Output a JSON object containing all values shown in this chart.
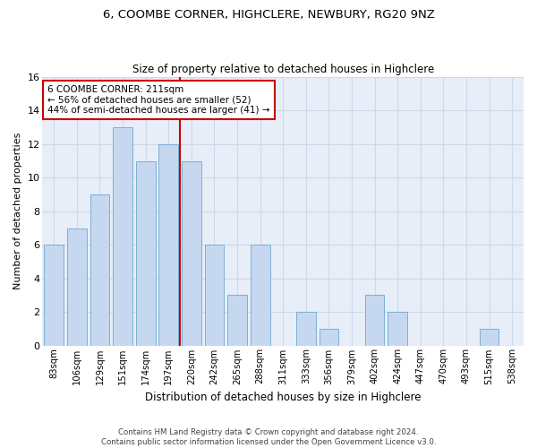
{
  "title": "6, COOMBE CORNER, HIGHCLERE, NEWBURY, RG20 9NZ",
  "subtitle": "Size of property relative to detached houses in Highclere",
  "xlabel": "Distribution of detached houses by size in Highclere",
  "ylabel": "Number of detached properties",
  "bar_labels": [
    "83sqm",
    "106sqm",
    "129sqm",
    "151sqm",
    "174sqm",
    "197sqm",
    "220sqm",
    "242sqm",
    "265sqm",
    "288sqm",
    "311sqm",
    "333sqm",
    "356sqm",
    "379sqm",
    "402sqm",
    "424sqm",
    "447sqm",
    "470sqm",
    "493sqm",
    "515sqm",
    "538sqm"
  ],
  "bar_values": [
    6,
    7,
    9,
    13,
    11,
    12,
    11,
    6,
    3,
    6,
    0,
    2,
    1,
    0,
    3,
    2,
    0,
    0,
    0,
    1,
    0
  ],
  "bar_color": "#c5d8f0",
  "bar_edge_color": "#7bafd4",
  "property_line_x": 5.5,
  "property_line_label": "6 COOMBE CORNER: 211sqm",
  "annotation_line1": "← 56% of detached houses are smaller (52)",
  "annotation_line2": "44% of semi-detached houses are larger (41) →",
  "annotation_box_color": "#ffffff",
  "annotation_box_edge_color": "#cc0000",
  "vline_color": "#cc0000",
  "ylim": [
    0,
    16
  ],
  "yticks": [
    0,
    2,
    4,
    6,
    8,
    10,
    12,
    14,
    16
  ],
  "grid_color": "#cdd8ea",
  "bg_color": "#e8eef8",
  "footnote1": "Contains HM Land Registry data © Crown copyright and database right 2024.",
  "footnote2": "Contains public sector information licensed under the Open Government Licence v3.0."
}
